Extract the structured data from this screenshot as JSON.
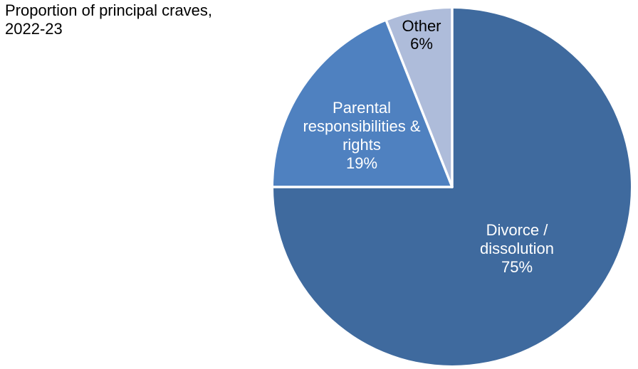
{
  "chart_data": {
    "type": "pie",
    "title": "Proportion of principal craves, 2022-23",
    "start_angle_deg": 0,
    "direction": "clockwise",
    "background_color": "#FFFFFF",
    "separator_color": "#FFFFFF",
    "legend": "none",
    "slices": [
      {
        "label": "Divorce / dissolution",
        "value_pct": 75,
        "display_pct": "75%",
        "color": "#3F6A9E",
        "label_color": "#FFFFFF",
        "label_lines": [
          "Divorce /",
          "dissolution",
          "75%"
        ]
      },
      {
        "label": "Parental responsibilities & rights",
        "value_pct": 19,
        "display_pct": "19%",
        "color": "#4F81C0",
        "label_color": "#FFFFFF",
        "label_lines": [
          "Parental",
          "responsibilities &",
          "rights",
          "19%"
        ]
      },
      {
        "label": "Other",
        "value_pct": 6,
        "display_pct": "6%",
        "color": "#AEBCDA",
        "label_color": "#000000",
        "label_lines": [
          "Other",
          "6%"
        ]
      }
    ]
  }
}
